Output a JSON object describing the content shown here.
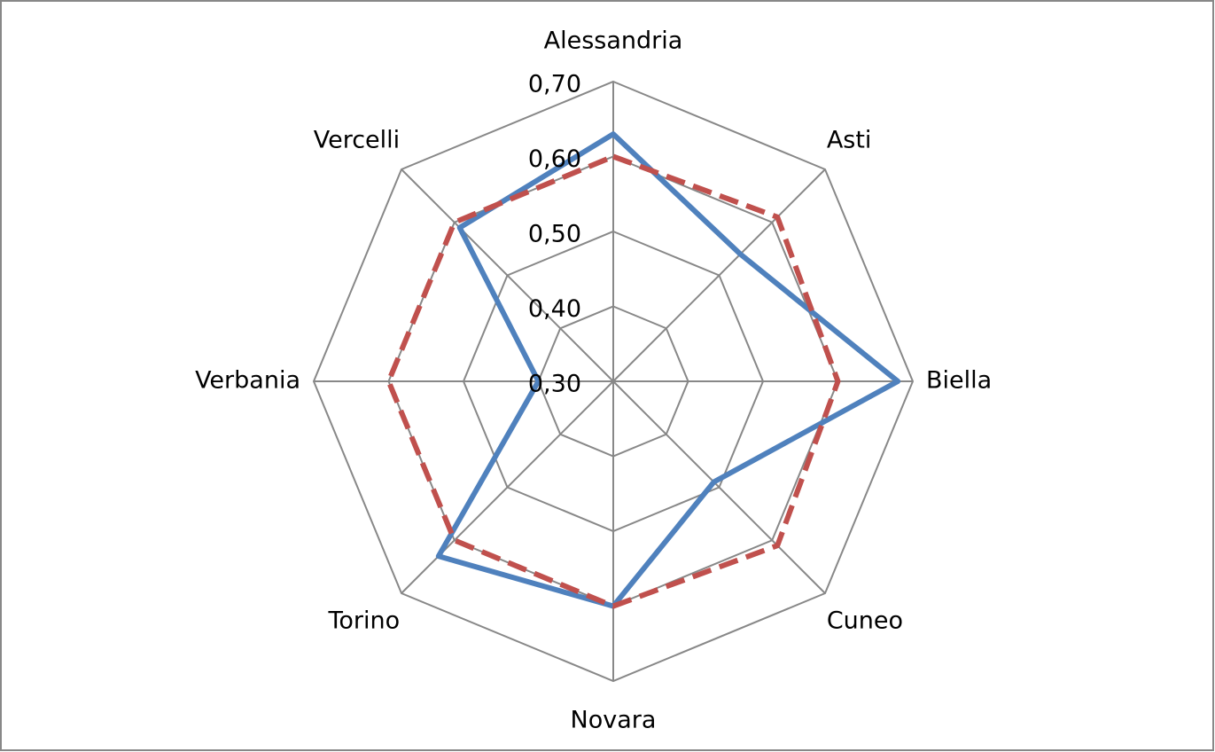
{
  "chart_data": {
    "type": "radar",
    "categories": [
      "Alessandria",
      "Asti",
      "Biella",
      "Cuneo",
      "Novara",
      "Torino",
      "Verbania",
      "Vercelli"
    ],
    "series": [
      {
        "color": "#4f81bd",
        "dashed": false,
        "values": [
          0.63,
          0.54,
          0.68,
          0.49,
          0.6,
          0.63,
          0.4,
          0.59
        ]
      },
      {
        "color": "#c0504d",
        "dashed": true,
        "values": [
          0.6,
          0.61,
          0.6,
          0.61,
          0.6,
          0.6,
          0.6,
          0.6
        ]
      }
    ],
    "ylim": [
      0.3,
      0.7
    ],
    "yticks": [
      {
        "value": 0.3,
        "label": "0,30"
      },
      {
        "value": 0.4,
        "label": "0,40"
      },
      {
        "value": 0.5,
        "label": "0,50"
      },
      {
        "value": 0.6,
        "label": "0,60"
      },
      {
        "value": 0.7,
        "label": "0,70"
      }
    ],
    "grid": true
  }
}
